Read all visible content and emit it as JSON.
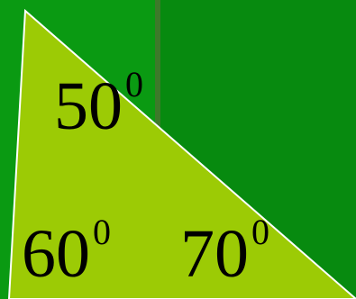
{
  "colors": {
    "background": "#0a9a12",
    "panel_dark": "#078a0f",
    "panel_divider": "#3d7a2a",
    "triangle_fill": "#9ccb05",
    "triangle_edge": "#ffffff"
  },
  "angles": [
    {
      "value": "50",
      "degree": "0"
    },
    {
      "value": "60",
      "degree": "0"
    },
    {
      "value": "70",
      "degree": "0"
    }
  ]
}
